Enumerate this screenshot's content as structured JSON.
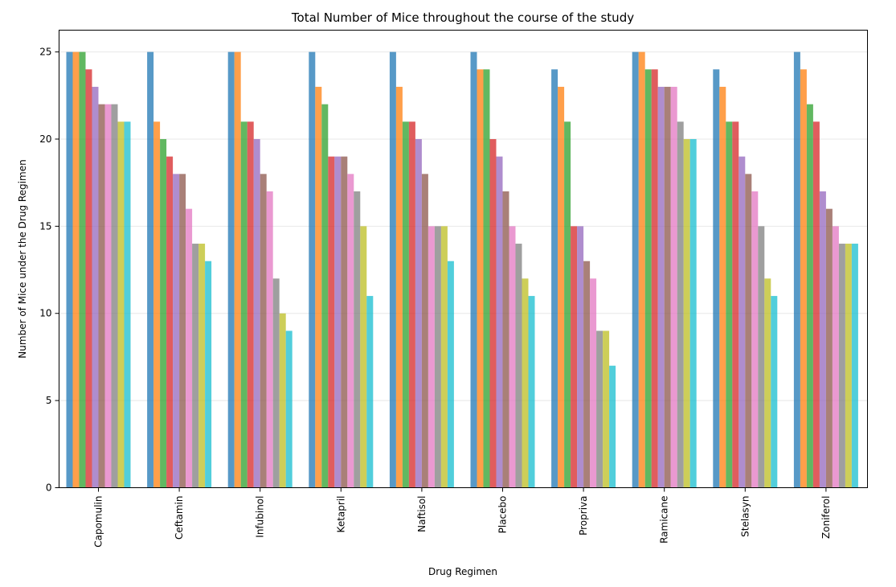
{
  "chart_data": {
    "type": "bar",
    "title": "Total Number of Mice throughout the course of the study",
    "xlabel": "Drug Regimen",
    "ylabel": "Number of Mice under the Drug Regimen",
    "ylim": [
      0,
      26.25
    ],
    "yticks": [
      0,
      5,
      10,
      15,
      20,
      25
    ],
    "grid": "horizontal",
    "categories": [
      "Capomulin",
      "Ceftamin",
      "Infubinol",
      "Ketapril",
      "Naftisol",
      "Placebo",
      "Propriva",
      "Ramicane",
      "Stelasyn",
      "Zoniferol"
    ],
    "colors": [
      "#1f77b4",
      "#ff7f0e",
      "#2ca02c",
      "#d62728",
      "#9467bd",
      "#8c564b",
      "#e377c2",
      "#7f7f7f",
      "#bcbd22",
      "#17becf"
    ],
    "opacity": 0.75,
    "series": [
      {
        "values": [
          25,
          25,
          25,
          25,
          25,
          25,
          24,
          25,
          24,
          25
        ]
      },
      {
        "values": [
          25,
          21,
          25,
          23,
          23,
          24,
          23,
          25,
          23,
          24
        ]
      },
      {
        "values": [
          25,
          20,
          21,
          22,
          21,
          24,
          21,
          24,
          21,
          22
        ]
      },
      {
        "values": [
          24,
          19,
          21,
          19,
          21,
          20,
          15,
          24,
          21,
          21
        ]
      },
      {
        "values": [
          23,
          18,
          20,
          19,
          20,
          19,
          15,
          23,
          19,
          17
        ]
      },
      {
        "values": [
          22,
          18,
          18,
          19,
          18,
          17,
          13,
          23,
          18,
          16
        ]
      },
      {
        "values": [
          22,
          16,
          17,
          18,
          15,
          15,
          12,
          23,
          17,
          15
        ]
      },
      {
        "values": [
          22,
          14,
          12,
          17,
          15,
          14,
          9,
          21,
          15,
          14
        ]
      },
      {
        "values": [
          21,
          14,
          10,
          15,
          15,
          12,
          9,
          20,
          12,
          14
        ]
      },
      {
        "values": [
          21,
          13,
          9,
          11,
          13,
          11,
          7,
          20,
          11,
          14
        ]
      }
    ]
  }
}
